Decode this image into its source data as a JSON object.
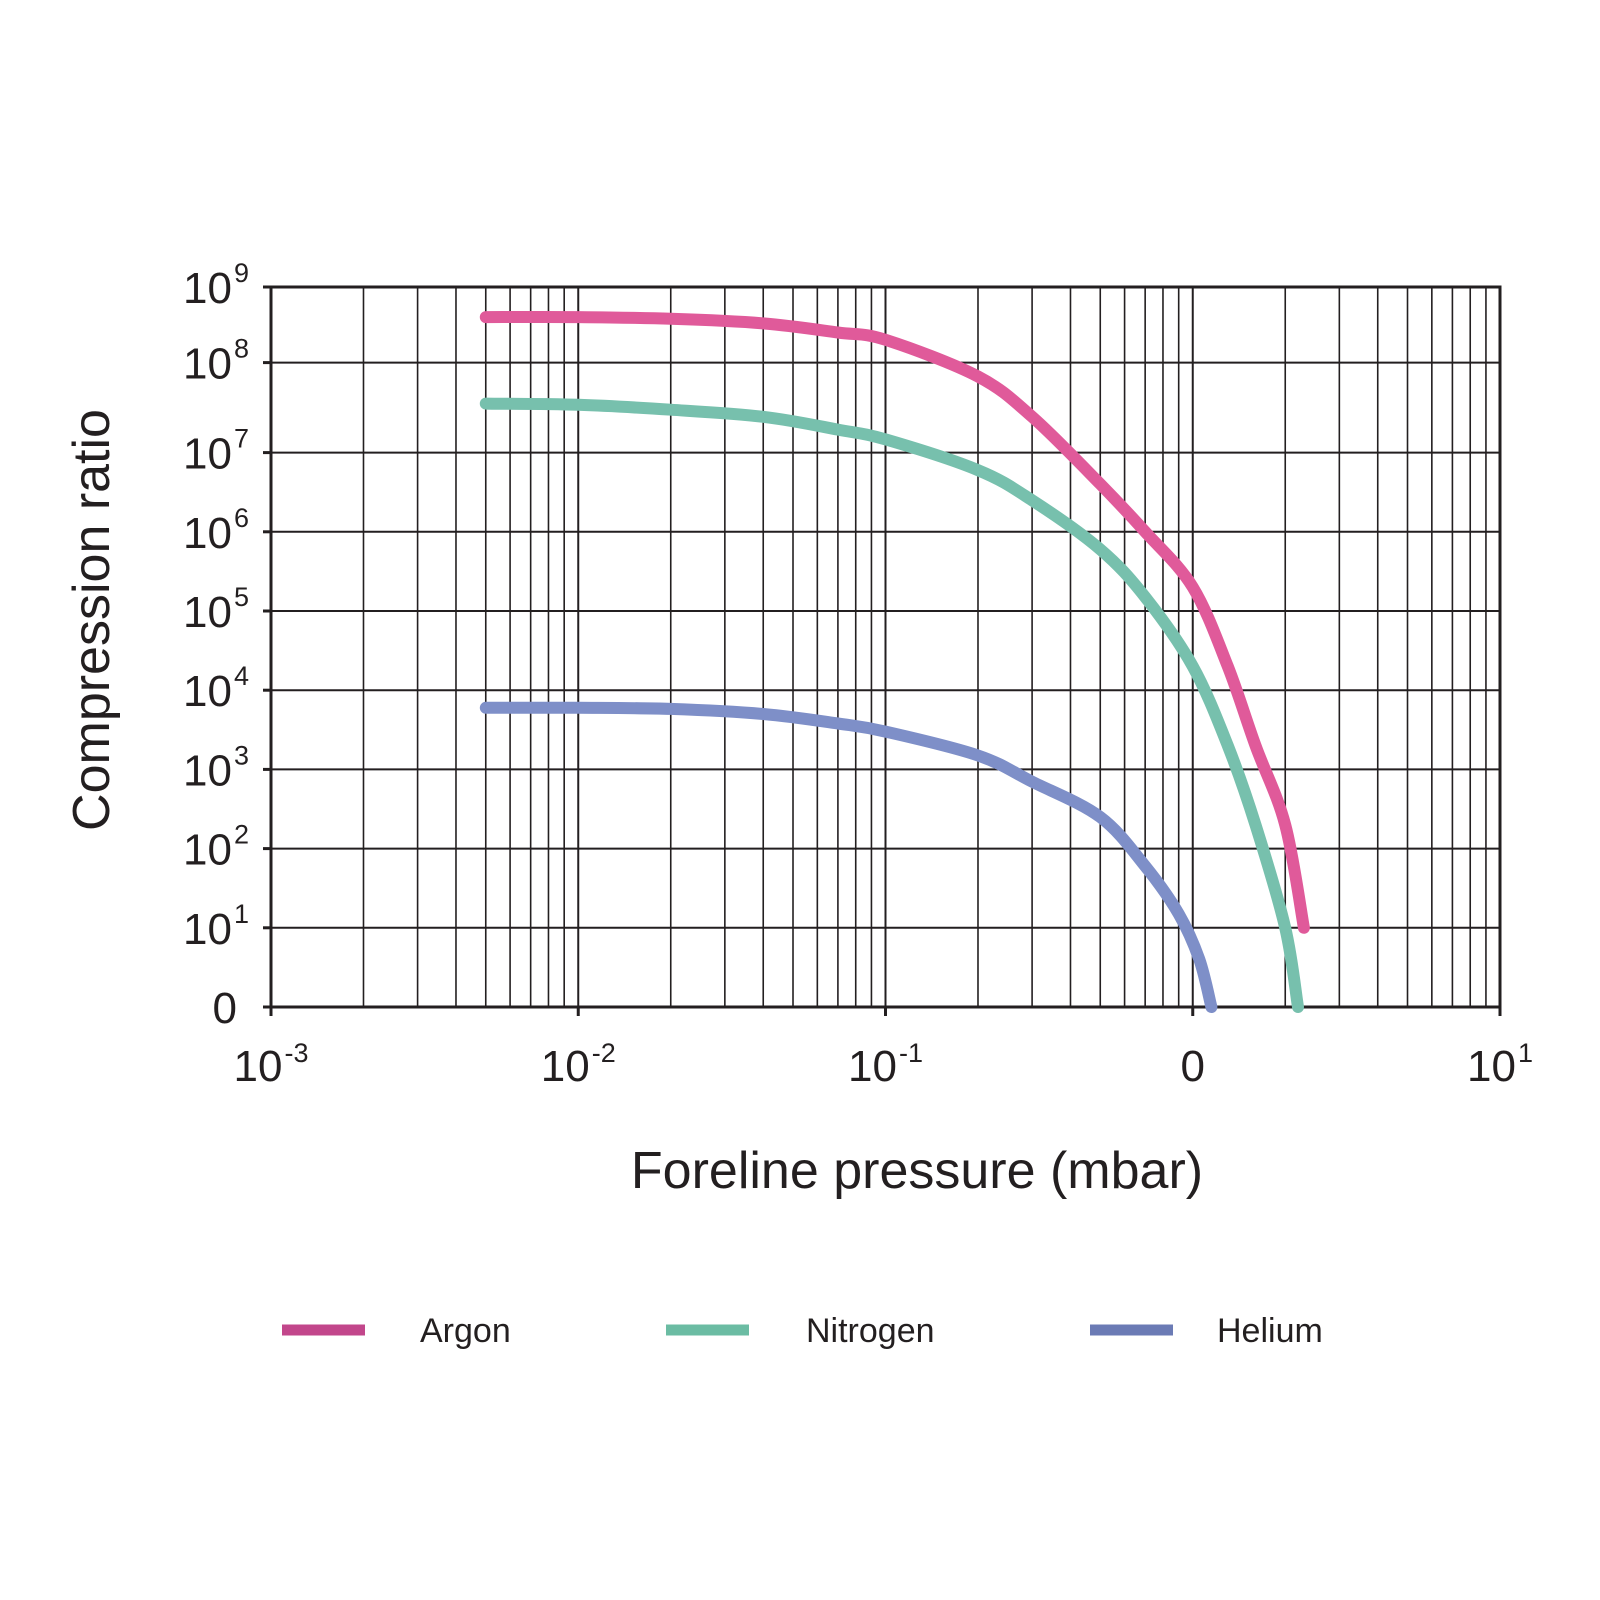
{
  "chart_data": {
    "type": "line",
    "title": "",
    "xlabel": "Foreline pressure (mbar)",
    "ylabel": "Compression ratio",
    "x_scale": "log",
    "y_scale": "log",
    "xlim": [
      0.001,
      10
    ],
    "ylim": [
      1,
      1000000000
    ],
    "grid": true,
    "legend_position": "bottom",
    "x_ticks": [
      {
        "value": 0.001,
        "base": "10",
        "exp": "-3"
      },
      {
        "value": 0.01,
        "base": "10",
        "exp": "-2"
      },
      {
        "value": 0.1,
        "base": "10",
        "exp": "-1"
      },
      {
        "value": 1,
        "base": "0",
        "exp": ""
      },
      {
        "value": 10,
        "base": "10",
        "exp": "1"
      }
    ],
    "y_ticks": [
      {
        "value": 1,
        "base": "0",
        "exp": ""
      },
      {
        "value": 10,
        "base": "10",
        "exp": "1"
      },
      {
        "value": 100,
        "base": "10",
        "exp": "2"
      },
      {
        "value": 1000,
        "base": "10",
        "exp": "3"
      },
      {
        "value": 10000,
        "base": "10",
        "exp": "4"
      },
      {
        "value": 100000,
        "base": "10",
        "exp": "5"
      },
      {
        "value": 1000000,
        "base": "10",
        "exp": "6"
      },
      {
        "value": 10000000,
        "base": "10",
        "exp": "7"
      },
      {
        "value": 100000000,
        "base": "10",
        "exp": "8"
      },
      {
        "value": 1000000000,
        "base": "10",
        "exp": "9"
      }
    ],
    "series": [
      {
        "name": "Argon",
        "color": "#e05a9a",
        "legend_color": "#c2468b",
        "x": [
          0.005,
          0.01,
          0.02,
          0.04,
          0.07,
          0.1,
          0.2,
          0.3,
          0.5,
          0.7,
          1.0,
          1.3,
          1.6,
          2.0,
          2.3
        ],
        "y": [
          400000000,
          400000000,
          380000000,
          330000000,
          250000000,
          200000000,
          70000000,
          25000000,
          4000000,
          1000000,
          200000,
          20000,
          2000,
          200,
          10
        ]
      },
      {
        "name": "Nitrogen",
        "color": "#77c0ad",
        "legend_color": "#6bbca3",
        "x": [
          0.005,
          0.01,
          0.02,
          0.04,
          0.07,
          0.1,
          0.2,
          0.3,
          0.5,
          0.7,
          1.0,
          1.3,
          1.6,
          2.0,
          2.2
        ],
        "y": [
          35000000,
          34000000,
          30000000,
          25000000,
          18000000,
          14000000,
          6000000,
          2500000,
          600000,
          150000,
          20000,
          2000,
          200,
          10,
          1
        ]
      },
      {
        "name": "Helium",
        "color": "#7e8fc8",
        "legend_color": "#6b7bb5",
        "x": [
          0.005,
          0.01,
          0.02,
          0.04,
          0.07,
          0.1,
          0.2,
          0.3,
          0.5,
          0.7,
          0.9,
          1.05,
          1.15
        ],
        "y": [
          6000,
          6000,
          5800,
          5000,
          3800,
          3000,
          1500,
          700,
          250,
          60,
          15,
          4,
          1
        ]
      }
    ]
  }
}
